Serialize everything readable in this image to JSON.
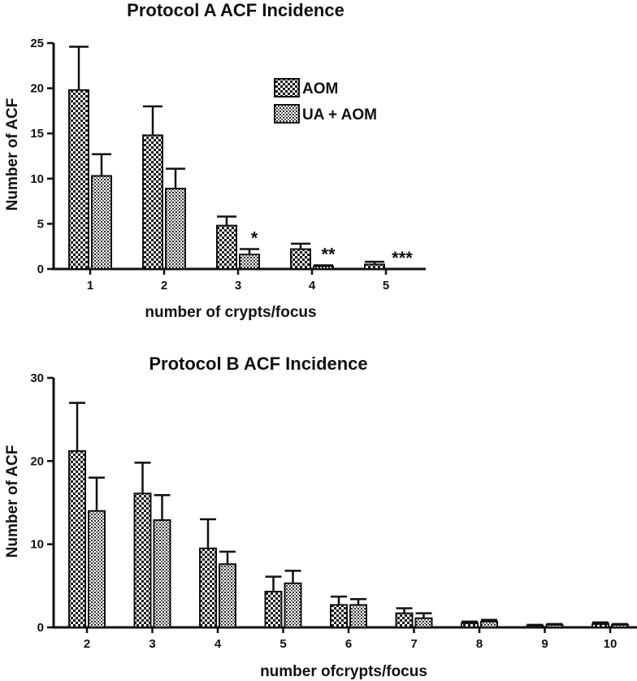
{
  "colors": {
    "ink": "#111111",
    "background": "#ffffff"
  },
  "chart_data": [
    {
      "type": "bar",
      "title": "Protocol A ACF Incidence",
      "xlabel": "number of crypts/focus",
      "ylabel": "Number of ACF",
      "categories": [
        "1",
        "2",
        "3",
        "4",
        "5"
      ],
      "ylim": [
        0,
        25
      ],
      "yticks": [
        "0",
        "5",
        "10",
        "15",
        "20",
        "25"
      ],
      "legend_position": "top-right",
      "series": [
        {
          "name": "AOM",
          "pattern": "checker",
          "values": [
            19.8,
            14.8,
            4.8,
            2.2,
            0.5
          ],
          "errors": [
            4.8,
            3.2,
            1.0,
            0.6,
            0.3
          ]
        },
        {
          "name": "UA + AOM",
          "pattern": "dots",
          "values": [
            10.3,
            8.9,
            1.6,
            0.3,
            0.0
          ],
          "errors": [
            2.4,
            2.2,
            0.6,
            0.1,
            0.0
          ]
        }
      ],
      "annotations": [
        {
          "category": "3",
          "text": "*"
        },
        {
          "category": "4",
          "text": "**"
        },
        {
          "category": "5",
          "text": "***"
        }
      ]
    },
    {
      "type": "bar",
      "title": "Protocol B ACF Incidence",
      "xlabel": "number ofcrypts/focus",
      "ylabel": "Number of ACF",
      "categories": [
        "2",
        "3",
        "4",
        "5",
        "6",
        "7",
        "8",
        "9",
        "10"
      ],
      "ylim": [
        0,
        30
      ],
      "yticks": [
        "0",
        "10",
        "20",
        "30"
      ],
      "series": [
        {
          "name": "AOM",
          "pattern": "checker",
          "values": [
            21.2,
            16.1,
            9.5,
            4.3,
            2.7,
            1.7,
            0.5,
            0.2,
            0.4
          ],
          "errors": [
            5.8,
            3.7,
            3.5,
            1.8,
            1.0,
            0.6,
            0.2,
            0.1,
            0.2
          ]
        },
        {
          "name": "UA + AOM",
          "pattern": "dots",
          "values": [
            14.0,
            12.9,
            7.6,
            5.3,
            2.7,
            1.1,
            0.7,
            0.3,
            0.3
          ],
          "errors": [
            4.0,
            3.0,
            1.5,
            1.5,
            0.7,
            0.6,
            0.2,
            0.1,
            0.1
          ]
        }
      ]
    }
  ]
}
